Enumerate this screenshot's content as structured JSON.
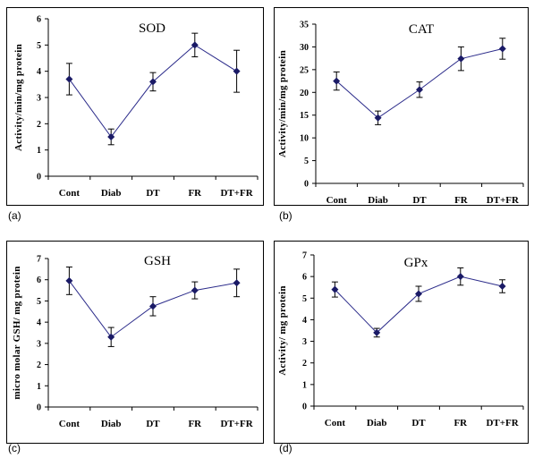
{
  "colors": {
    "line": "#2b2b8a",
    "marker": "#1a1a66",
    "axis": "#000000"
  },
  "panels": [
    {
      "label": "(a)"
    },
    {
      "label": "(b)"
    },
    {
      "label": "(c)"
    },
    {
      "label": "(d)"
    }
  ],
  "chart_data": [
    {
      "type": "line",
      "title": "SOD",
      "ylabel": "Activity/min/mg protein",
      "xlabel": "",
      "categories": [
        "Cont",
        "Diab",
        "DT",
        "FR",
        "DT+FR"
      ],
      "values": [
        3.7,
        1.5,
        3.6,
        5.0,
        4.0
      ],
      "errors": [
        0.6,
        0.3,
        0.35,
        0.45,
        0.8
      ],
      "ylim": [
        0,
        6
      ],
      "yticks": [
        0,
        1,
        2,
        3,
        4,
        5,
        6
      ],
      "grid": false
    },
    {
      "type": "line",
      "title": "CAT",
      "ylabel": "Activity/min/mg protein",
      "xlabel": "",
      "categories": [
        "Cont",
        "Diab",
        "DT",
        "FR",
        "DT+FR"
      ],
      "values": [
        22.5,
        14.4,
        20.6,
        27.4,
        29.6
      ],
      "errors": [
        2.0,
        1.5,
        1.7,
        2.6,
        2.3
      ],
      "ylim": [
        0,
        35
      ],
      "yticks": [
        0,
        5,
        10,
        15,
        20,
        25,
        30,
        35
      ],
      "grid": false
    },
    {
      "type": "line",
      "title": "GSH",
      "ylabel": "micro molar GSH/ mg protein",
      "xlabel": "",
      "categories": [
        "Cont",
        "Diab",
        "DT",
        "FR",
        "DT+FR"
      ],
      "values": [
        5.95,
        3.3,
        4.75,
        5.5,
        5.85
      ],
      "errors": [
        0.65,
        0.45,
        0.45,
        0.4,
        0.65
      ],
      "ylim": [
        0,
        7
      ],
      "yticks": [
        0,
        1,
        2,
        3,
        4,
        5,
        6,
        7
      ],
      "grid": false
    },
    {
      "type": "line",
      "title": "GPx",
      "ylabel": "Activity/ mg protein",
      "xlabel": "",
      "categories": [
        "Cont",
        "Diab",
        "DT",
        "FR",
        "DT+FR"
      ],
      "values": [
        5.4,
        3.4,
        5.2,
        6.0,
        5.55
      ],
      "errors": [
        0.35,
        0.2,
        0.35,
        0.4,
        0.3
      ],
      "ylim": [
        0,
        7
      ],
      "yticks": [
        0,
        1,
        2,
        3,
        4,
        5,
        6,
        7
      ],
      "grid": false
    }
  ]
}
